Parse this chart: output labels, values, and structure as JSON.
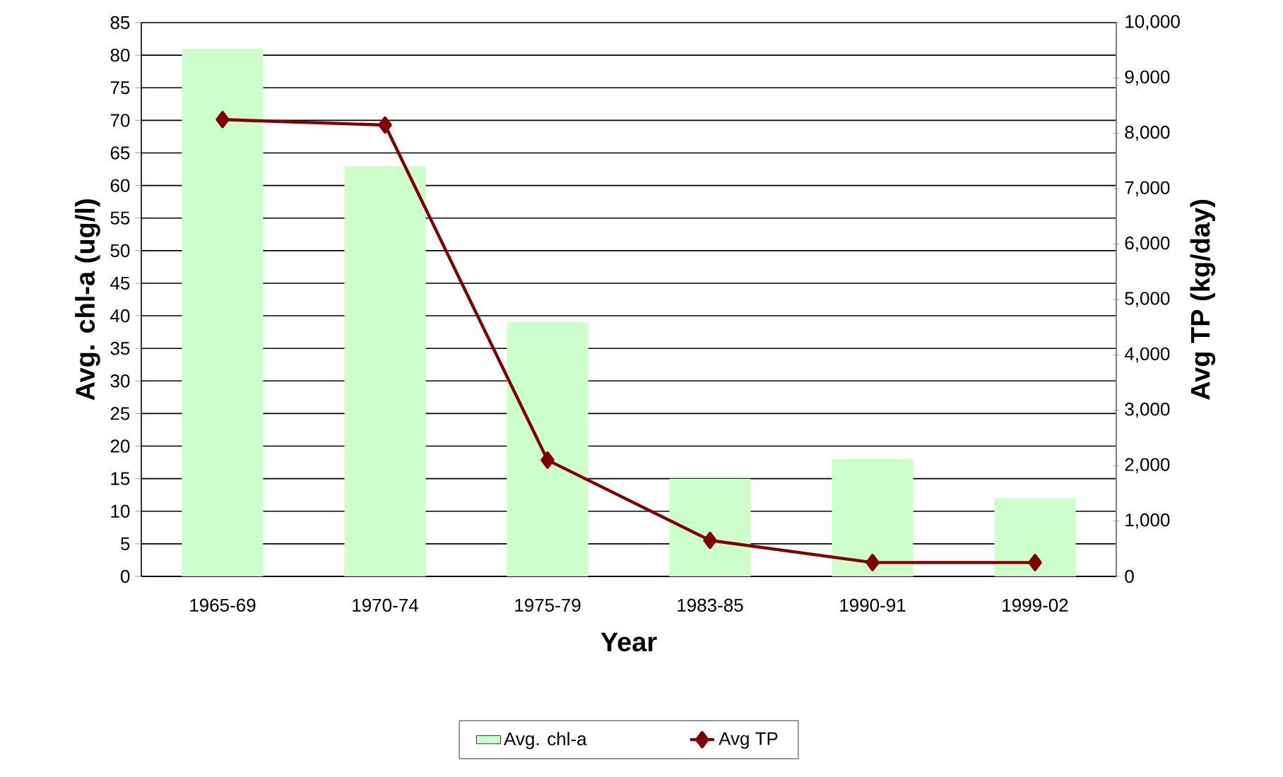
{
  "chart_data": {
    "type": "bar",
    "categories": [
      "1965-69",
      "1970-74",
      "1975-79",
      "1983-85",
      "1990-91",
      "1999-02"
    ],
    "series": [
      {
        "name": "Avg. chl-a",
        "color": "#ccffcc",
        "values": [
          81,
          63,
          39,
          15,
          18,
          12
        ]
      },
      {
        "name": "Avg TP",
        "type": "line",
        "axis": "y2",
        "color": "#800000",
        "marker": "diamond",
        "line_style": "solid",
        "values": [
          8250,
          8150,
          2100,
          650,
          250,
          250
        ]
      }
    ],
    "xlabel": "Year",
    "ylabel": "Avg. chl-a (ug/l)",
    "y2label": "Avg TP (kg/day)",
    "ylim": [
      0,
      85
    ],
    "yticks": [
      0,
      5,
      10,
      15,
      20,
      25,
      30,
      35,
      40,
      45,
      50,
      55,
      60,
      65,
      70,
      75,
      80,
      85
    ],
    "y2lim": [
      0,
      10000
    ],
    "y2ticks": [
      0,
      {
        "value": 1000,
        "label": "1,000"
      },
      {
        "value": 2000,
        "label": "2,000"
      },
      {
        "value": 3000,
        "label": "3,000"
      },
      {
        "value": 4000,
        "label": "4,000"
      },
      {
        "value": 5000,
        "label": "5,000"
      },
      {
        "value": 6000,
        "label": "6,000"
      },
      {
        "value": 7000,
        "label": "7,000"
      },
      {
        "value": 8000,
        "label": "8,000"
      },
      {
        "value": 9000,
        "label": "9,000"
      },
      {
        "value": 10000,
        "label": "10,000"
      }
    ],
    "grid": "y",
    "legend": "bottom"
  }
}
